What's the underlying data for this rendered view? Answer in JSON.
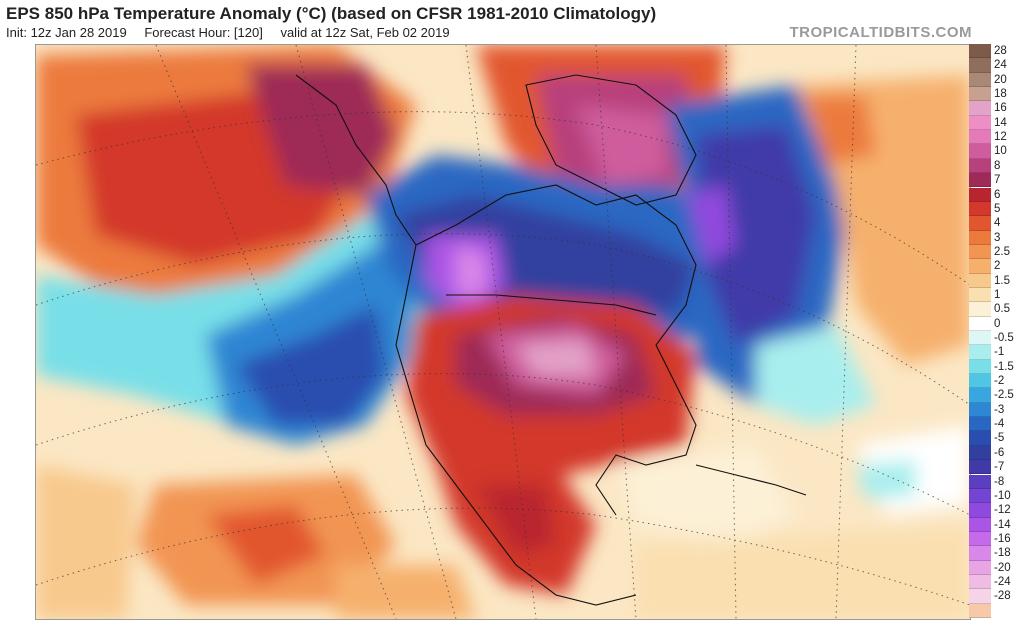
{
  "header": {
    "title": "EPS 850 hPa Temperature Anomaly (°C) (based on CFSR 1981-2010 Climatology)",
    "init": "Init: 12z Jan 28 2019",
    "forecast_hour": "Forecast Hour: [120]",
    "valid": "valid at 12z Sat, Feb 02 2019",
    "brand": "TROPICALTIDBITS.COM"
  },
  "legend": [
    {
      "label": "28",
      "color": "#7d5a4a"
    },
    {
      "label": "24",
      "color": "#8f6e5e"
    },
    {
      "label": "20",
      "color": "#a88877"
    },
    {
      "label": "18",
      "color": "#c7a090"
    },
    {
      "label": "16",
      "color": "#e3a2c8"
    },
    {
      "label": "14",
      "color": "#ee8ec5"
    },
    {
      "label": "12",
      "color": "#e47ab7"
    },
    {
      "label": "10",
      "color": "#cf5d9d"
    },
    {
      "label": "8",
      "color": "#b7417b"
    },
    {
      "label": "7",
      "color": "#9e2a57"
    },
    {
      "label": "6",
      "color": "#b9252e"
    },
    {
      "label": "5",
      "color": "#d3382c"
    },
    {
      "label": "4",
      "color": "#e2562f"
    },
    {
      "label": "3",
      "color": "#ec7a3d"
    },
    {
      "label": "2.5",
      "color": "#f29552"
    },
    {
      "label": "2",
      "color": "#f6b06d"
    },
    {
      "label": "1.5",
      "color": "#f8c98d"
    },
    {
      "label": "1",
      "color": "#fadfb0"
    },
    {
      "label": "0.5",
      "color": "#fcf0d6"
    },
    {
      "label": "0",
      "color": "#ffffff"
    },
    {
      "label": "-0.5",
      "color": "#dcf7f5"
    },
    {
      "label": "-1",
      "color": "#a9eeee"
    },
    {
      "label": "-1.5",
      "color": "#78dfe8"
    },
    {
      "label": "-2",
      "color": "#4fc6e6"
    },
    {
      "label": "-2.5",
      "color": "#3aa6df"
    },
    {
      "label": "-3",
      "color": "#2f86d3"
    },
    {
      "label": "-4",
      "color": "#2a67c3"
    },
    {
      "label": "-5",
      "color": "#2a4eb0"
    },
    {
      "label": "-6",
      "color": "#31409f"
    },
    {
      "label": "-7",
      "color": "#3f3aa8"
    },
    {
      "label": "-8",
      "color": "#5a3fc0"
    },
    {
      "label": "-10",
      "color": "#7444d2"
    },
    {
      "label": "-12",
      "color": "#9049dd"
    },
    {
      "label": "-14",
      "color": "#ab55e6"
    },
    {
      "label": "-16",
      "color": "#c56ae8"
    },
    {
      "label": "-18",
      "color": "#d987e8"
    },
    {
      "label": "-20",
      "color": "#e7a5e6"
    },
    {
      "label": "-24",
      "color": "#efbde4"
    },
    {
      "label": "-28",
      "color": "#f4d4e6"
    },
    {
      "label": "",
      "color": "#f7c9a8"
    }
  ]
}
